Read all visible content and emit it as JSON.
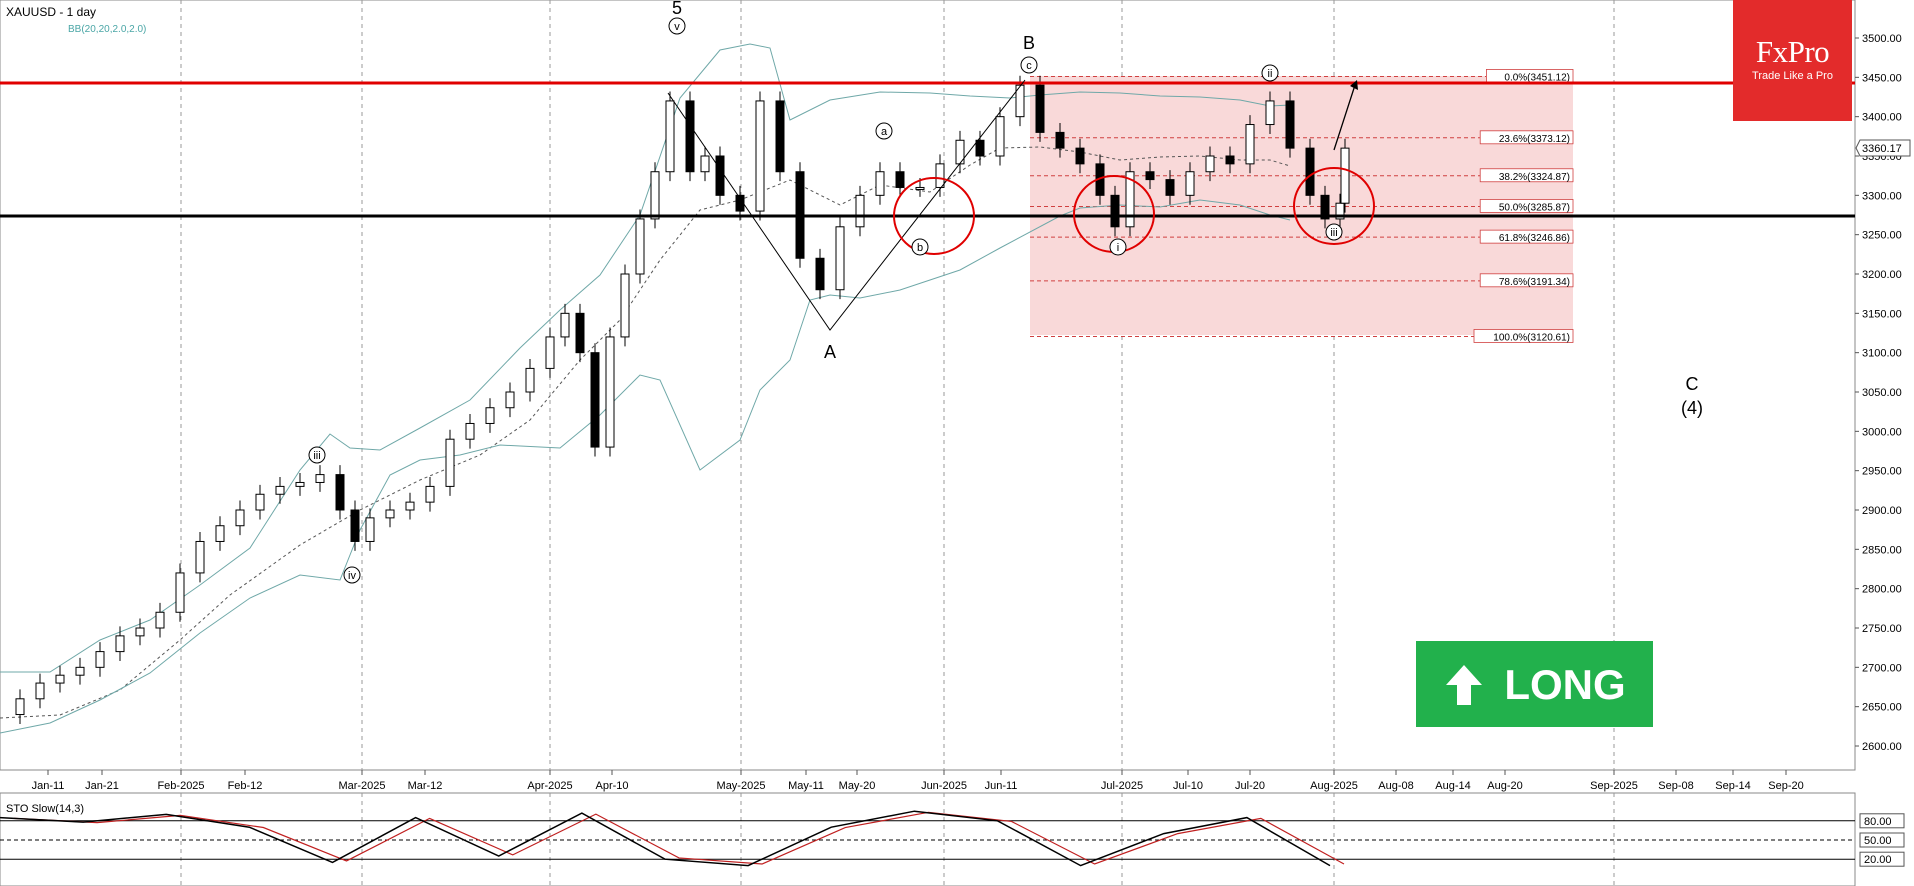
{
  "header": {
    "title": "XAUUSD - 1 day",
    "indicator": "BB(20,20,2.0,2.0)"
  },
  "colors": {
    "resistance": "#e00000",
    "support": "#000000",
    "band": "#6fa8a8",
    "candle_up": "#ffffff",
    "candle_down": "#000000",
    "fib_zone": "#f9d9d9",
    "fib_line": "#d04040",
    "brand": "#e32b2b",
    "long": "#22b14c",
    "stoch_k": "#000000",
    "stoch_d": "#c02020"
  },
  "brand": {
    "logo": "FxPro",
    "tagline": "Trade Like a Pro"
  },
  "signal": {
    "label": "LONG",
    "icon": "arrow-up-icon"
  },
  "price_axis": {
    "labels": [
      "3500.00",
      "3450.00",
      "3400.00",
      "3350.00",
      "3300.00",
      "3250.00",
      "3200.00",
      "3150.00",
      "3100.00",
      "3050.00",
      "3000.00",
      "2950.00",
      "2900.00",
      "2850.00",
      "2800.00",
      "2750.00",
      "2700.00",
      "2650.00",
      "2600.00"
    ],
    "last_price": "3360.17"
  },
  "date_axis": {
    "labels": [
      "Jan-11",
      "Jan-21",
      "Feb-2025",
      "Feb-12",
      "Mar-2025",
      "Mar-12",
      "Apr-2025",
      "Apr-10",
      "May-2025",
      "May-11",
      "May-20",
      "Jun-2025",
      "Jun-11",
      "Jul-2025",
      "Jul-10",
      "Jul-20",
      "Aug-2025",
      "Aug-08",
      "Aug-14",
      "Aug-20",
      "Sep-2025",
      "Sep-08",
      "Sep-14",
      "Sep-20"
    ]
  },
  "fib_levels": [
    {
      "label": "0.0%(3451.12)",
      "price": 3451.12
    },
    {
      "label": "23.6%(3373.12)",
      "price": 3373.12
    },
    {
      "label": "38.2%(3324.87)",
      "price": 3324.87
    },
    {
      "label": "50.0%(3285.87)",
      "price": 3285.87
    },
    {
      "label": "61.8%(3246.86)",
      "price": 3246.86
    },
    {
      "label": "78.6%(3191.34)",
      "price": 3191.34
    },
    {
      "label": "100.0%(3120.61)",
      "price": 3120.61
    }
  ],
  "wave_labels": [
    "5",
    "v",
    "iii",
    "iv",
    "A",
    "B",
    "a",
    "b",
    "c",
    "i",
    "ii",
    "iii",
    "C",
    "(4)"
  ],
  "stoch": {
    "title": "STO Slow(14,3)",
    "levels": [
      "80.00",
      "50.00",
      "20.00"
    ]
  },
  "chart_data": {
    "type": "candlestick",
    "title": "XAUUSD - 1 day",
    "ylim": [
      2580,
      3520
    ],
    "horizontal_lines": {
      "resistance": 3440,
      "support": 3268
    },
    "fib_retracement": {
      "high": 3451.12,
      "low": 3120.61
    },
    "x": [
      "Jan-11",
      "Jan-21",
      "Feb-2025",
      "Feb-12",
      "Mar-2025",
      "Mar-12",
      "Apr-2025",
      "Apr-10",
      "May-2025",
      "May-11",
      "May-20",
      "Jun-2025",
      "Jun-11",
      "Jul-2025",
      "Jul-10",
      "Jul-20",
      "Aug-2025"
    ],
    "close": [
      2690,
      2745,
      2860,
      2930,
      2880,
      2980,
      3120,
      3280,
      3240,
      3220,
      3310,
      3340,
      3400,
      3320,
      3330,
      3380,
      3360
    ],
    "stoch_k": [
      85,
      78,
      90,
      70,
      15,
      85,
      25,
      92,
      20,
      10,
      70,
      95,
      80,
      10,
      60,
      85,
      10
    ]
  }
}
